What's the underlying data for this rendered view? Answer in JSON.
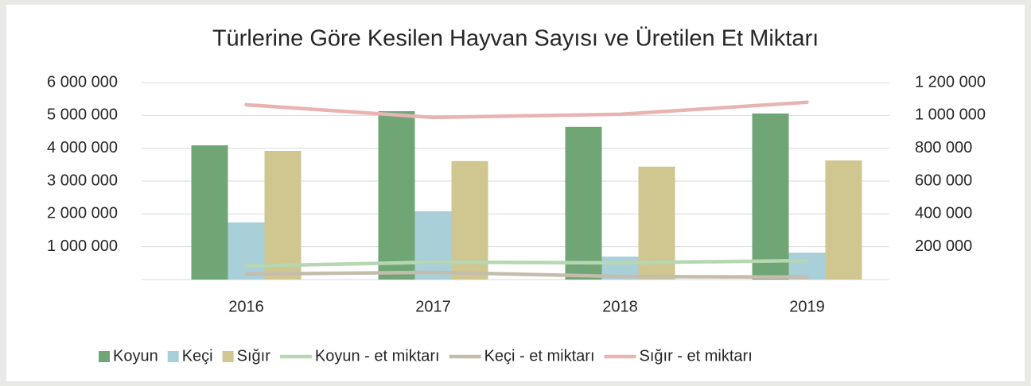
{
  "chart_data": {
    "type": "bar",
    "title": "Türlerine Göre Kesilen Hayvan Sayısı ve Üretilen Et Miktarı",
    "categories": [
      "2016",
      "2017",
      "2018",
      "2019"
    ],
    "series": [
      {
        "name": "Koyun",
        "type": "bar",
        "color": "#70a676",
        "values": [
          4090000,
          5130000,
          4650000,
          5060000
        ]
      },
      {
        "name": "Keçi",
        "type": "bar",
        "color": "#a9cfd9",
        "values": [
          1740000,
          2080000,
          700000,
          820000
        ]
      },
      {
        "name": "Sığır",
        "type": "bar",
        "color": "#cfc690",
        "values": [
          3920000,
          3610000,
          3440000,
          3630000
        ]
      },
      {
        "name": "Koyun - et miktarı",
        "type": "line",
        "axis": "y2",
        "color": "#b6d7b1",
        "values": [
          82000,
          106000,
          102000,
          116000
        ]
      },
      {
        "name": "Keçi - et miktarı",
        "type": "line",
        "axis": "y2",
        "color": "#c5bdac",
        "values": [
          34000,
          44000,
          19000,
          15000
        ]
      },
      {
        "name": "Sığır - et miktarı",
        "type": "line",
        "axis": "y2",
        "color": "#e8b3b3",
        "values": [
          1065000,
          988000,
          1007000,
          1080000
        ]
      }
    ],
    "ylim": [
      0,
      6000000
    ],
    "yticks": [
      {
        "value": 1000000,
        "label": "1 000 000"
      },
      {
        "value": 2000000,
        "label": "2 000 000"
      },
      {
        "value": 3000000,
        "label": "3 000 000"
      },
      {
        "value": 4000000,
        "label": "4 000 000"
      },
      {
        "value": 5000000,
        "label": "5 000 000"
      },
      {
        "value": 6000000,
        "label": "6 000 000"
      }
    ],
    "y2lim": [
      0,
      1200000
    ],
    "y2ticks": [
      {
        "value": 200000,
        "label": "200 000"
      },
      {
        "value": 400000,
        "label": "400 000"
      },
      {
        "value": 600000,
        "label": "600 000"
      },
      {
        "value": 800000,
        "label": "800 000"
      },
      {
        "value": 1000000,
        "label": "1 000 000"
      },
      {
        "value": 1200000,
        "label": "1 200 000"
      }
    ],
    "grid": true,
    "legend": "bottom"
  }
}
